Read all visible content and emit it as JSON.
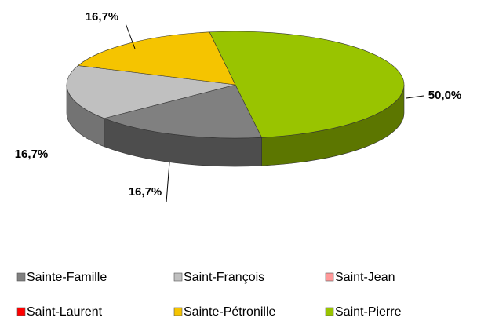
{
  "chart_data": {
    "type": "pie3d",
    "categories": [
      "Sainte-Famille",
      "Saint-François",
      "Saint-Jean",
      "Saint-Laurent",
      "Sainte-Pétronille",
      "Saint-Pierre"
    ],
    "values": [
      16.7,
      16.7,
      0,
      0,
      16.7,
      50.0
    ],
    "value_labels": [
      "16,7%",
      "16,7%",
      null,
      null,
      "16,7%",
      "50,0%"
    ],
    "colors": [
      "#808080",
      "#c0c0c0",
      "#ff9999",
      "#ff0000",
      "#f5c400",
      "#99c400"
    ],
    "legend": "bottom"
  }
}
